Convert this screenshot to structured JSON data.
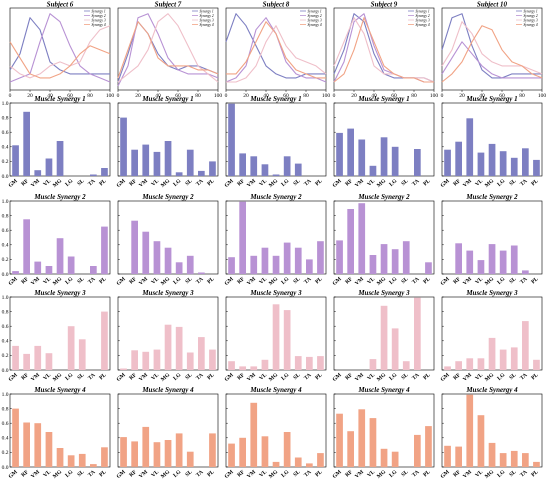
{
  "figure": {
    "subjects": [
      "Subject 6",
      "Subject 7",
      "Subject 8",
      "Subject 9",
      "Subject 10"
    ],
    "colors": {
      "synergy1": "#7d7fc2",
      "synergy2": "#b892d4",
      "synergy3": "#efbfc9",
      "synergy4": "#f1a385"
    }
  },
  "chart_data": [
    {
      "type": "line",
      "row": 0,
      "x_ticks": [
        0,
        20,
        40,
        60,
        80,
        100
      ],
      "legend": [
        "Synergy 1",
        "Synergy 2",
        "Synergy 3",
        "Synergy 4"
      ],
      "panels": [
        {
          "title": "Subject 6",
          "series": [
            {
              "name": "Synergy 1",
              "color": "#7d7fc2",
              "x": [
                0,
                10,
                20,
                30,
                40,
                50,
                60,
                70,
                80,
                90,
                100
              ],
              "y": [
                0.25,
                0.45,
                0.9,
                0.75,
                0.35,
                0.25,
                0.2,
                0.2,
                0.2,
                0.2,
                0.2
              ]
            },
            {
              "name": "Synergy 2",
              "color": "#b892d4",
              "x": [
                0,
                10,
                20,
                30,
                40,
                50,
                60,
                70,
                80,
                90,
                100
              ],
              "y": [
                0.1,
                0.15,
                0.2,
                0.6,
                0.95,
                0.85,
                0.55,
                0.3,
                0.2,
                0.15,
                0.1
              ]
            },
            {
              "name": "Synergy 3",
              "color": "#efbfc9",
              "x": [
                0,
                10,
                20,
                30,
                40,
                50,
                60,
                70,
                80,
                90,
                100
              ],
              "y": [
                0.3,
                0.2,
                0.15,
                0.2,
                0.3,
                0.35,
                0.3,
                0.35,
                0.6,
                0.75,
                0.8
              ]
            },
            {
              "name": "Synergy 4",
              "color": "#f1a385",
              "x": [
                0,
                10,
                20,
                30,
                40,
                50,
                60,
                70,
                80,
                90,
                100
              ],
              "y": [
                0.6,
                0.4,
                0.2,
                0.15,
                0.15,
                0.2,
                0.3,
                0.45,
                0.55,
                0.5,
                0.45
              ]
            }
          ]
        },
        {
          "title": "Subject 7",
          "series": [
            {
              "name": "Synergy 1",
              "color": "#7d7fc2",
              "x": [
                0,
                10,
                20,
                30,
                40,
                50,
                60,
                70,
                80,
                90,
                100
              ],
              "y": [
                0.1,
                0.45,
                0.85,
                0.7,
                0.45,
                0.3,
                0.25,
                0.3,
                0.3,
                0.25,
                0.2
              ]
            },
            {
              "name": "Synergy 2",
              "color": "#b892d4",
              "x": [
                0,
                10,
                20,
                30,
                40,
                50,
                60,
                70,
                80,
                90,
                100
              ],
              "y": [
                0.05,
                0.3,
                0.9,
                0.95,
                0.7,
                0.4,
                0.25,
                0.2,
                0.2,
                0.2,
                0.15
              ]
            },
            {
              "name": "Synergy 3",
              "color": "#efbfc9",
              "x": [
                0,
                10,
                20,
                30,
                40,
                50,
                60,
                70,
                80,
                90,
                100
              ],
              "y": [
                0.1,
                0.2,
                0.3,
                0.5,
                0.85,
                0.95,
                0.8,
                0.55,
                0.3,
                0.2,
                0.1
              ]
            },
            {
              "name": "Synergy 4",
              "color": "#f1a385",
              "x": [
                0,
                10,
                20,
                30,
                40,
                50,
                60,
                70,
                80,
                90,
                100
              ],
              "y": [
                0.15,
                0.5,
                0.85,
                0.7,
                0.4,
                0.3,
                0.3,
                0.3,
                0.25,
                0.25,
                0.2
              ]
            }
          ]
        },
        {
          "title": "Subject 8",
          "series": [
            {
              "name": "Synergy 1",
              "color": "#7d7fc2",
              "x": [
                0,
                10,
                20,
                30,
                40,
                50,
                60,
                70,
                80,
                90,
                100
              ],
              "y": [
                0.6,
                0.95,
                0.8,
                0.55,
                0.3,
                0.2,
                0.15,
                0.15,
                0.2,
                0.2,
                0.2
              ]
            },
            {
              "name": "Synergy 2",
              "color": "#b892d4",
              "x": [
                0,
                10,
                20,
                30,
                40,
                50,
                60,
                70,
                80,
                90,
                100
              ],
              "y": [
                0.1,
                0.15,
                0.3,
                0.75,
                0.9,
                0.7,
                0.35,
                0.2,
                0.15,
                0.15,
                0.1
              ]
            },
            {
              "name": "Synergy 3",
              "color": "#efbfc9",
              "x": [
                0,
                10,
                20,
                30,
                40,
                50,
                60,
                70,
                80,
                90,
                100
              ],
              "y": [
                0.1,
                0.1,
                0.15,
                0.3,
                0.6,
                0.8,
                0.55,
                0.4,
                0.35,
                0.3,
                0.2
              ]
            },
            {
              "name": "Synergy 4",
              "color": "#f1a385",
              "x": [
                0,
                10,
                20,
                30,
                40,
                50,
                60,
                70,
                80,
                90,
                100
              ],
              "y": [
                0.2,
                0.2,
                0.35,
                0.6,
                0.85,
                0.7,
                0.4,
                0.25,
                0.2,
                0.15,
                0.15
              ]
            }
          ]
        },
        {
          "title": "Subject 9",
          "series": [
            {
              "name": "Synergy 1",
              "color": "#7d7fc2",
              "x": [
                0,
                10,
                20,
                30,
                40,
                50,
                60,
                70,
                80,
                90,
                100
              ],
              "y": [
                0.2,
                0.5,
                0.95,
                0.85,
                0.45,
                0.2,
                0.15,
                0.15,
                0.15,
                0.15,
                0.1
              ]
            },
            {
              "name": "Synergy 2",
              "color": "#b892d4",
              "x": [
                0,
                10,
                20,
                30,
                40,
                50,
                60,
                70,
                80,
                90,
                100
              ],
              "y": [
                0.1,
                0.35,
                0.85,
                0.95,
                0.55,
                0.25,
                0.2,
                0.15,
                0.15,
                0.1,
                0.1
              ]
            },
            {
              "name": "Synergy 3",
              "color": "#efbfc9",
              "x": [
                0,
                10,
                20,
                30,
                40,
                50,
                60,
                70,
                80,
                90,
                100
              ],
              "y": [
                0.3,
                0.6,
                0.9,
                0.7,
                0.3,
                0.2,
                0.2,
                0.15,
                0.15,
                0.15,
                0.1
              ]
            },
            {
              "name": "Synergy 4",
              "color": "#f1a385",
              "x": [
                0,
                10,
                20,
                30,
                40,
                50,
                60,
                70,
                80,
                90,
                100
              ],
              "y": [
                0.1,
                0.2,
                0.5,
                0.9,
                0.6,
                0.3,
                0.2,
                0.15,
                0.15,
                0.1,
                0.1
              ]
            }
          ]
        },
        {
          "title": "Subject 10",
          "series": [
            {
              "name": "Synergy 1",
              "color": "#7d7fc2",
              "x": [
                0,
                10,
                20,
                30,
                40,
                50,
                60,
                70,
                80,
                90,
                100
              ],
              "y": [
                0.5,
                0.9,
                0.95,
                0.55,
                0.25,
                0.15,
                0.15,
                0.2,
                0.2,
                0.2,
                0.2
              ]
            },
            {
              "name": "Synergy 2",
              "color": "#b892d4",
              "x": [
                0,
                10,
                20,
                30,
                40,
                50,
                60,
                70,
                80,
                90,
                100
              ],
              "y": [
                0.2,
                0.4,
                0.6,
                0.45,
                0.3,
                0.2,
                0.15,
                0.15,
                0.15,
                0.15,
                0.15
              ]
            },
            {
              "name": "Synergy 3",
              "color": "#efbfc9",
              "x": [
                0,
                10,
                20,
                30,
                40,
                50,
                60,
                70,
                80,
                90,
                100
              ],
              "y": [
                0.3,
                0.5,
                0.85,
                0.7,
                0.45,
                0.35,
                0.3,
                0.3,
                0.3,
                0.25,
                0.2
              ]
            },
            {
              "name": "Synergy 4",
              "color": "#f1a385",
              "x": [
                0,
                10,
                20,
                30,
                40,
                50,
                60,
                70,
                80,
                90,
                100
              ],
              "y": [
                0.1,
                0.2,
                0.35,
                0.6,
                0.8,
                0.75,
                0.5,
                0.35,
                0.3,
                0.2,
                0.15
              ]
            }
          ]
        }
      ]
    },
    {
      "type": "bar",
      "categories": [
        "GM",
        "RF",
        "VM",
        "VL",
        "MG",
        "LG",
        "SL",
        "TA",
        "PL"
      ],
      "y_ticks": [
        "0.0",
        "0.2",
        "0.4",
        "0.6",
        "0.8",
        "1.0"
      ],
      "ylim": [
        0,
        1.0
      ],
      "rows": [
        {
          "title": "Muscle Synergy 1",
          "color": "#7d7fc2",
          "values": [
            [
              0.42,
              0.88,
              0.08,
              0.24,
              0.48,
              0.0,
              0.0,
              0.02,
              0.11
            ],
            [
              0.8,
              0.36,
              0.43,
              0.33,
              0.48,
              0.05,
              0.36,
              0.07,
              0.2
            ],
            [
              0.99,
              0.31,
              0.27,
              0.16,
              0.02,
              0.27,
              0.17,
              0.0,
              0.0
            ],
            [
              0.59,
              0.65,
              0.5,
              0.14,
              0.53,
              0.4,
              0.0,
              0.37,
              0.0
            ],
            [
              0.36,
              0.47,
              0.79,
              0.32,
              0.44,
              0.34,
              0.25,
              0.38,
              0.22
            ]
          ]
        },
        {
          "title": "Muscle Synergy 2",
          "color": "#b892d4",
          "values": [
            [
              0.04,
              0.75,
              0.17,
              0.11,
              0.49,
              0.24,
              0.0,
              0.11,
              0.65
            ],
            [
              0.0,
              0.73,
              0.58,
              0.45,
              0.36,
              0.16,
              0.25,
              0.02,
              0.0
            ],
            [
              0.23,
              0.99,
              0.25,
              0.36,
              0.25,
              0.43,
              0.36,
              0.2,
              0.45
            ],
            [
              0.46,
              0.89,
              0.97,
              0.26,
              0.41,
              0.34,
              0.45,
              0.0,
              0.16
            ],
            [
              0.0,
              0.42,
              0.32,
              0.19,
              0.41,
              0.32,
              0.39,
              0.05,
              0.0
            ]
          ]
        },
        {
          "title": "Muscle Synergy 3",
          "color": "#efbfc9",
          "values": [
            [
              0.33,
              0.22,
              0.33,
              0.23,
              0.0,
              0.6,
              0.42,
              0.0,
              0.8
            ],
            [
              0.02,
              0.27,
              0.25,
              0.28,
              0.62,
              0.59,
              0.24,
              0.45,
              0.28
            ],
            [
              0.12,
              0.05,
              0.05,
              0.14,
              0.9,
              0.82,
              0.19,
              0.18,
              0.19
            ],
            [
              0.0,
              0.0,
              0.0,
              0.15,
              0.88,
              0.57,
              0.12,
              0.99,
              0.0
            ],
            [
              0.05,
              0.12,
              0.16,
              0.16,
              0.44,
              0.28,
              0.31,
              0.67,
              0.14
            ]
          ]
        },
        {
          "title": "Muscle Synergy 4",
          "color": "#f1a385",
          "values": [
            [
              0.8,
              0.61,
              0.6,
              0.48,
              0.26,
              0.16,
              0.18,
              0.04,
              0.27
            ],
            [
              0.41,
              0.35,
              0.55,
              0.34,
              0.37,
              0.46,
              0.21,
              0.0,
              0.46
            ],
            [
              0.32,
              0.4,
              0.88,
              0.42,
              0.07,
              0.48,
              0.13,
              0.05,
              0.19
            ],
            [
              0.73,
              0.49,
              0.79,
              0.67,
              0.25,
              0.21,
              0.0,
              0.44,
              0.56
            ],
            [
              0.29,
              0.28,
              0.99,
              0.71,
              0.33,
              0.19,
              0.22,
              0.19,
              0.07
            ]
          ]
        }
      ]
    }
  ]
}
